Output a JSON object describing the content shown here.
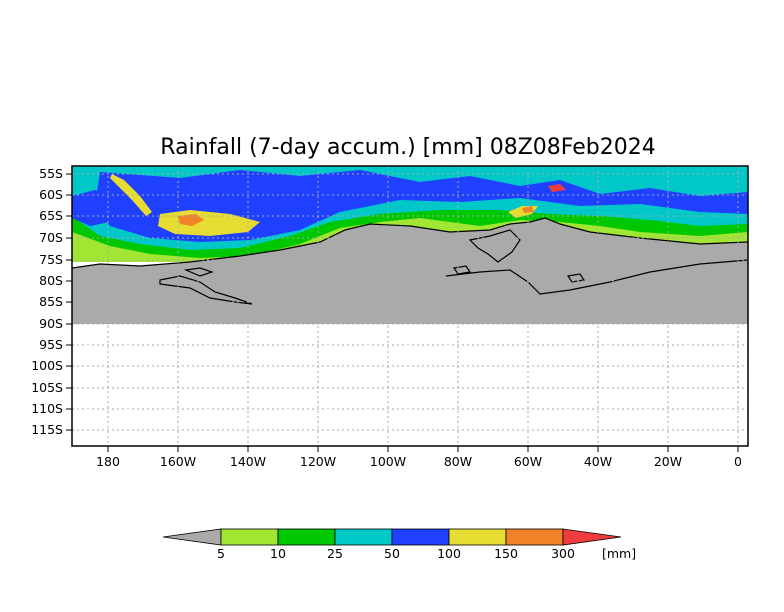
{
  "title": "Rainfall (7-day accum.) [mm] 08Z08Feb2024",
  "latitude_labels": [
    "55S",
    "60S",
    "65S",
    "70S",
    "75S",
    "80S",
    "85S",
    "90S",
    "95S",
    "100S",
    "105S",
    "110S",
    "115S"
  ],
  "longitude_labels": [
    "180",
    "160W",
    "140W",
    "120W",
    "100W",
    "80W",
    "60W",
    "40W",
    "20W",
    "0"
  ],
  "colorbar": {
    "unit_label": "[mm]",
    "thresholds": [
      "5",
      "10",
      "25",
      "50",
      "100",
      "150",
      "300"
    ],
    "colors": [
      "#aaaaaa",
      "#a0e632",
      "#00c800",
      "#00c8c8",
      "#2040ff",
      "#e6dc32",
      "#f08228",
      "#f03c3c"
    ]
  },
  "colors": {
    "land_fill": "#aaaaaa",
    "coastline": "#000000",
    "grid": "#aaaaaa",
    "background": "#ffffff"
  }
}
